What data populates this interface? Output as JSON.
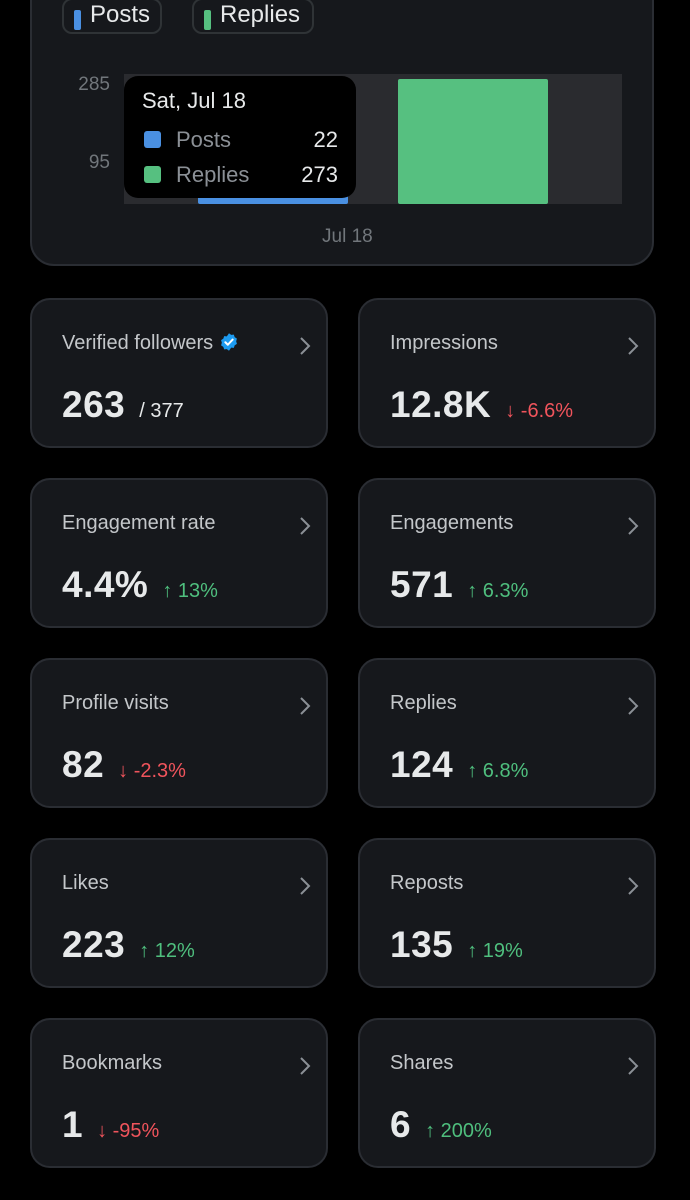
{
  "chart": {
    "legend": {
      "posts_label": "Posts",
      "replies_label": "Replies",
      "posts_color": "#4a90e2",
      "replies_color": "#56c080"
    },
    "y_ticks": [
      "285",
      "95"
    ],
    "x_tick": "Jul 18",
    "tooltip": {
      "title": "Sat, Jul 18",
      "rows": [
        {
          "label": "Posts",
          "value": "22"
        },
        {
          "label": "Replies",
          "value": "273"
        }
      ]
    }
  },
  "chart_data": {
    "type": "bar",
    "categories": [
      "Jul 18"
    ],
    "series": [
      {
        "name": "Posts",
        "values": [
          22
        ]
      },
      {
        "name": "Replies",
        "values": [
          273
        ]
      }
    ],
    "ylim": [
      0,
      285
    ],
    "y_ticks": [
      95,
      285
    ]
  },
  "metrics": [
    {
      "label": "Verified followers",
      "value": "263",
      "total": "/ 377",
      "change": "",
      "direction": "none",
      "verified": true
    },
    {
      "label": "Impressions",
      "value": "12.8K",
      "change": "↓ -6.6%",
      "direction": "down"
    },
    {
      "label": "Engagement rate",
      "value": "4.4%",
      "change": "↑ 13%",
      "direction": "up"
    },
    {
      "label": "Engagements",
      "value": "571",
      "change": "↑ 6.3%",
      "direction": "up"
    },
    {
      "label": "Profile visits",
      "value": "82",
      "change": "↓ -2.3%",
      "direction": "down"
    },
    {
      "label": "Replies",
      "value": "124",
      "change": "↑ 6.8%",
      "direction": "up"
    },
    {
      "label": "Likes",
      "value": "223",
      "change": "↑ 12%",
      "direction": "up"
    },
    {
      "label": "Reposts",
      "value": "135",
      "change": "↑ 19%",
      "direction": "up"
    },
    {
      "label": "Bookmarks",
      "value": "1",
      "change": "↓ -95%",
      "direction": "down"
    },
    {
      "label": "Shares",
      "value": "6",
      "change": "↑ 200%",
      "direction": "up"
    }
  ],
  "icons": {
    "chevron": "chevron-right-icon",
    "verified": "verified-badge-icon"
  },
  "colors": {
    "verified": "#1d9bf0",
    "up": "#4fbf7e",
    "down": "#f0545c"
  }
}
